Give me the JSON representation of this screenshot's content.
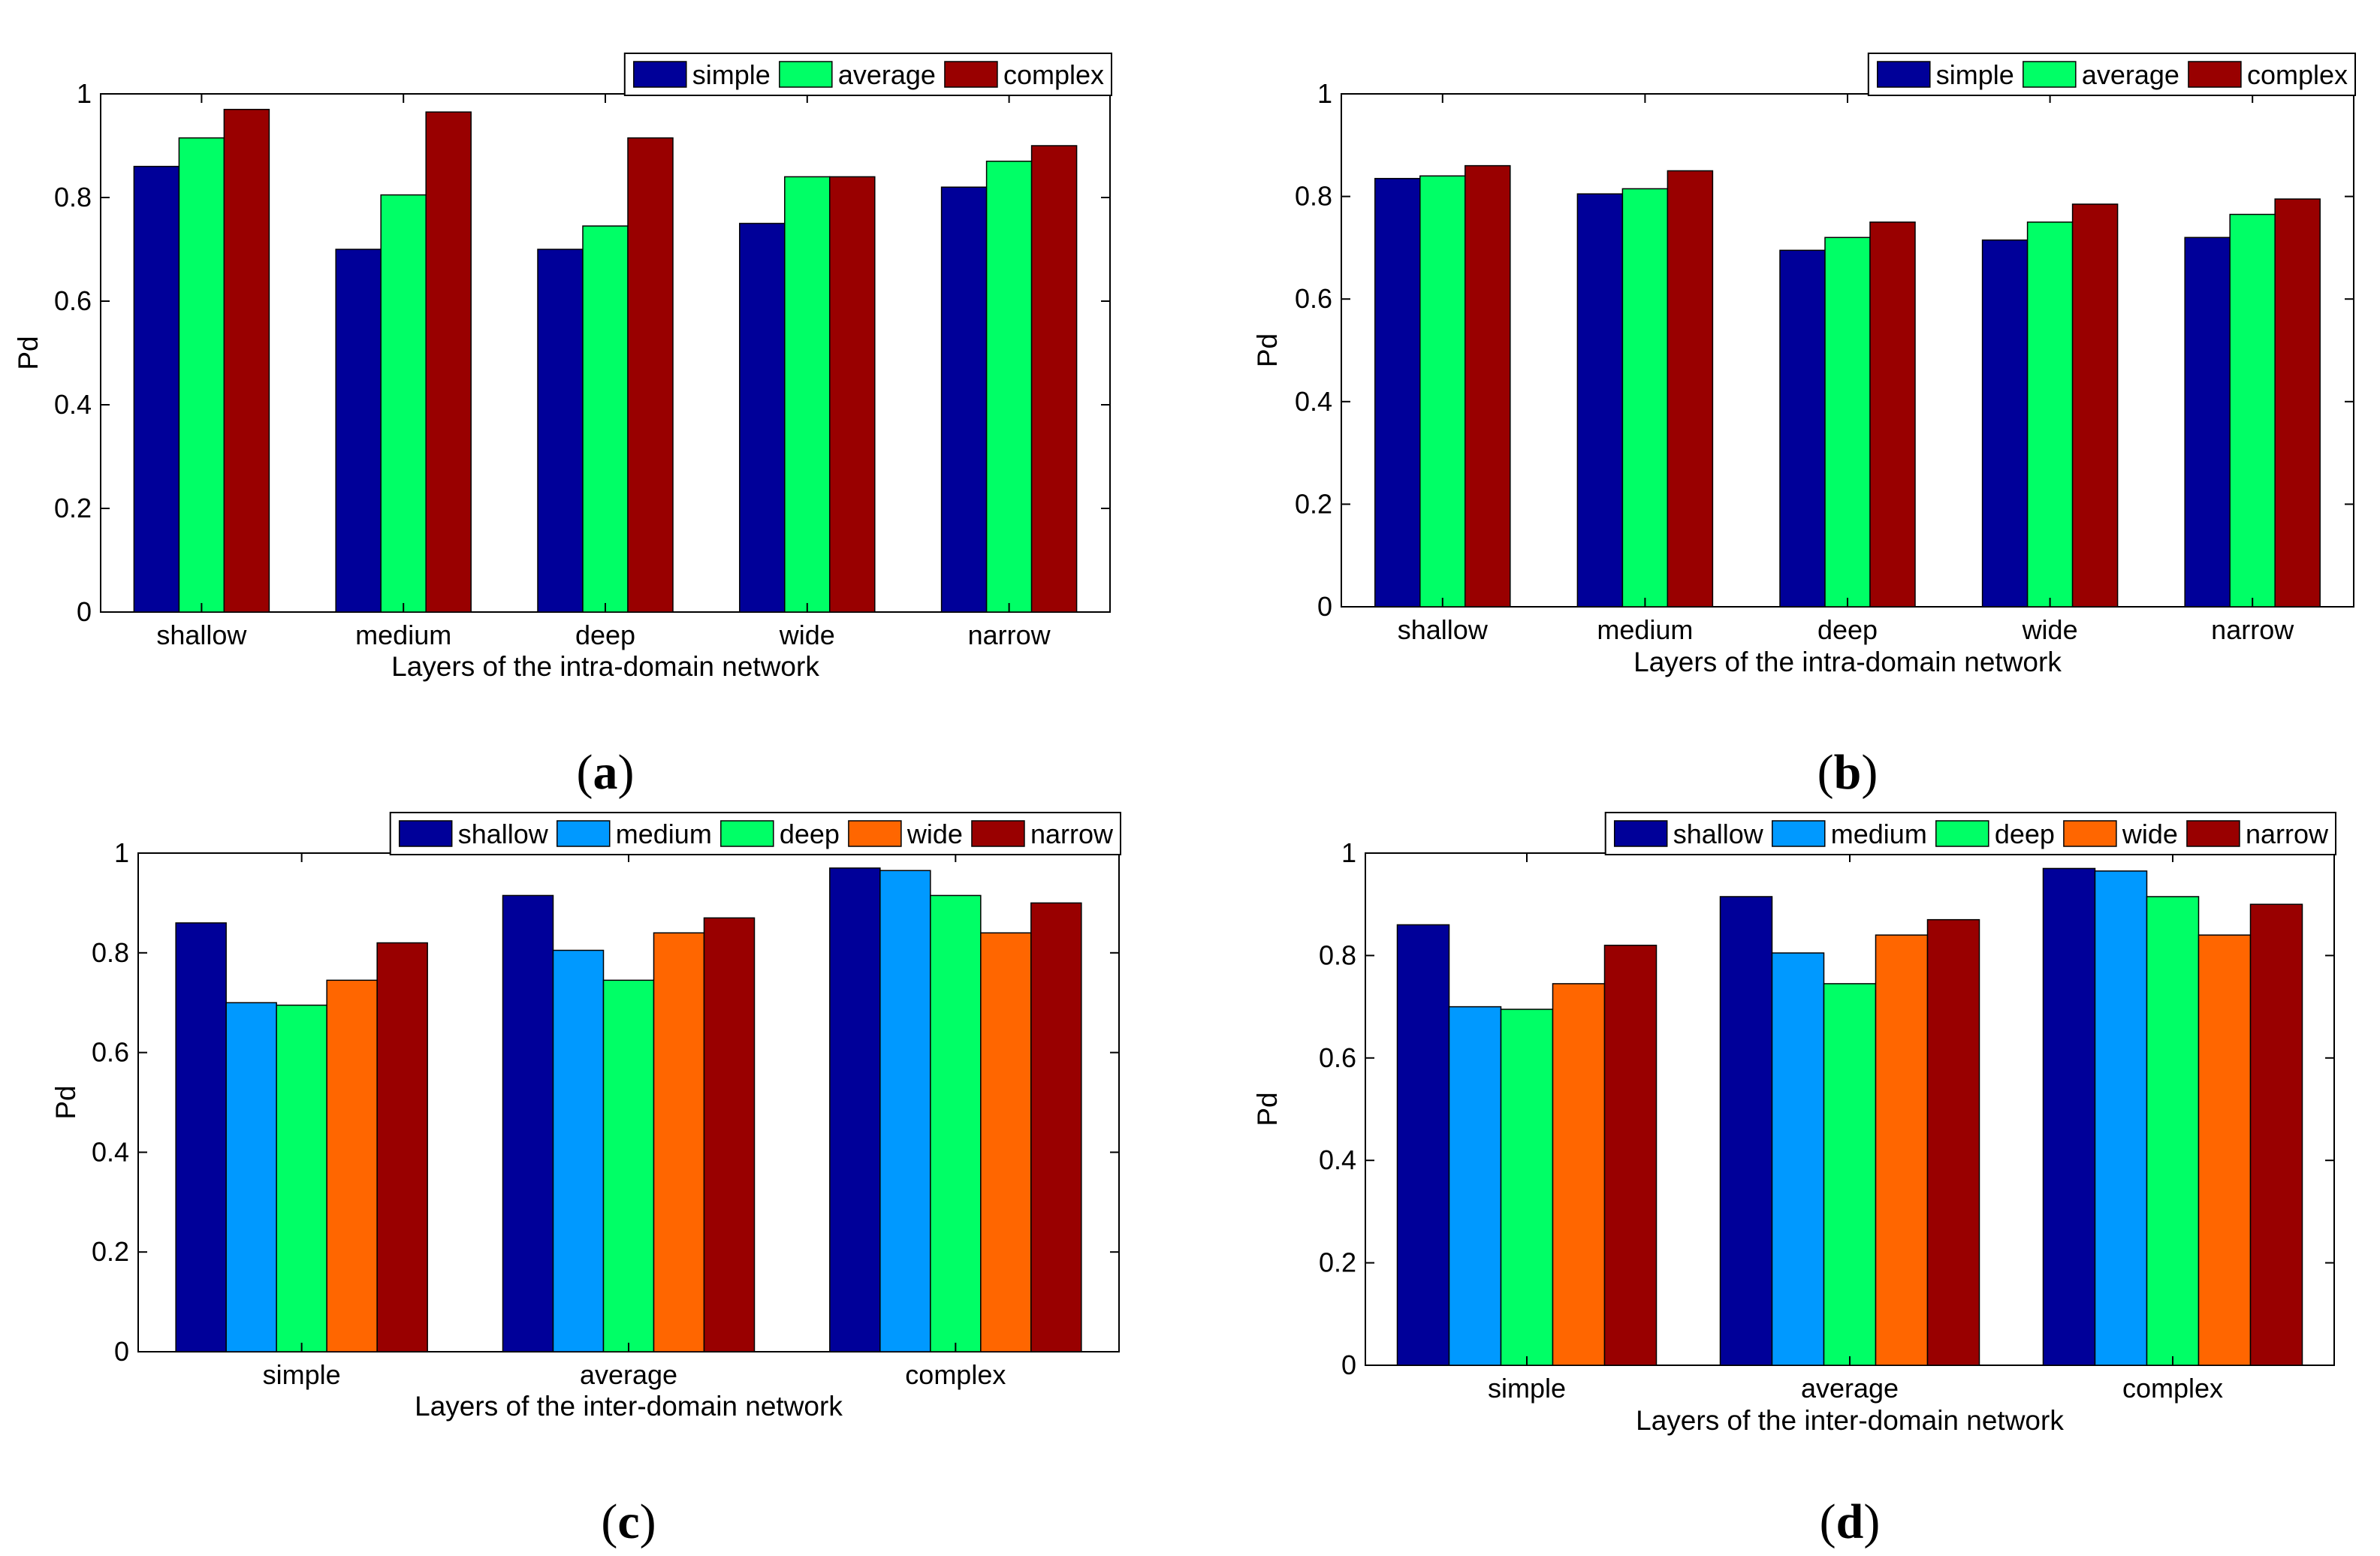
{
  "chart_data": [
    {
      "type": "bar",
      "panel_label": "a",
      "categories": [
        "shallow",
        "medium",
        "deep",
        "wide",
        "narrow"
      ],
      "series": [
        {
          "name": "simple",
          "color": "#000099",
          "values": [
            0.86,
            0.7,
            0.7,
            0.75,
            0.82
          ]
        },
        {
          "name": "average",
          "color": "#00ff66",
          "values": [
            0.915,
            0.805,
            0.745,
            0.84,
            0.87
          ]
        },
        {
          "name": "complex",
          "color": "#990000",
          "values": [
            0.97,
            0.965,
            0.915,
            0.84,
            0.9
          ]
        }
      ],
      "xlabel": "Layers of the intra-domain network",
      "ylabel": "Pd",
      "ylim": [
        0,
        1
      ],
      "yticks": [
        "0",
        "0.2",
        "0.4",
        "0.6",
        "0.8",
        "1"
      ],
      "legend": "top-right"
    },
    {
      "type": "bar",
      "panel_label": "b",
      "categories": [
        "shallow",
        "medium",
        "deep",
        "wide",
        "narrow"
      ],
      "series": [
        {
          "name": "simple",
          "color": "#000099",
          "values": [
            0.835,
            0.805,
            0.695,
            0.715,
            0.72
          ]
        },
        {
          "name": "average",
          "color": "#00ff66",
          "values": [
            0.84,
            0.815,
            0.72,
            0.75,
            0.765
          ]
        },
        {
          "name": "complex",
          "color": "#990000",
          "values": [
            0.86,
            0.85,
            0.75,
            0.785,
            0.795
          ]
        }
      ],
      "xlabel": "Layers of the intra-domain network",
      "ylabel": "Pd",
      "ylim": [
        0,
        1
      ],
      "yticks": [
        "0",
        "0.2",
        "0.4",
        "0.6",
        "0.8",
        "1"
      ],
      "legend": "top-right"
    },
    {
      "type": "bar",
      "panel_label": "c",
      "categories": [
        "simple",
        "average",
        "complex"
      ],
      "series": [
        {
          "name": "shallow",
          "color": "#000099",
          "values": [
            0.86,
            0.915,
            0.97
          ]
        },
        {
          "name": "medium",
          "color": "#0099ff",
          "values": [
            0.7,
            0.805,
            0.965
          ]
        },
        {
          "name": "deep",
          "color": "#00ff66",
          "values": [
            0.695,
            0.745,
            0.915
          ]
        },
        {
          "name": "wide",
          "color": "#ff6600",
          "values": [
            0.745,
            0.84,
            0.84
          ]
        },
        {
          "name": "narrow",
          "color": "#990000",
          "values": [
            0.82,
            0.87,
            0.9
          ]
        }
      ],
      "xlabel": "Layers of the inter-domain network",
      "ylabel": "Pd",
      "ylim": [
        0,
        1
      ],
      "yticks": [
        "0",
        "0.2",
        "0.4",
        "0.6",
        "0.8",
        "1"
      ],
      "legend": "top-right"
    },
    {
      "type": "bar",
      "panel_label": "d",
      "categories": [
        "simple",
        "average",
        "complex"
      ],
      "series": [
        {
          "name": "shallow",
          "color": "#000099",
          "values": [
            0.86,
            0.915,
            0.97
          ]
        },
        {
          "name": "medium",
          "color": "#0099ff",
          "values": [
            0.7,
            0.805,
            0.965
          ]
        },
        {
          "name": "deep",
          "color": "#00ff66",
          "values": [
            0.695,
            0.745,
            0.915
          ]
        },
        {
          "name": "wide",
          "color": "#ff6600",
          "values": [
            0.745,
            0.84,
            0.84
          ]
        },
        {
          "name": "narrow",
          "color": "#990000",
          "values": [
            0.82,
            0.87,
            0.9
          ]
        }
      ],
      "xlabel": "Layers of the inter-domain network",
      "ylabel": "Pd",
      "ylim": [
        0,
        1
      ],
      "yticks": [
        "0",
        "0.2",
        "0.4",
        "0.6",
        "0.8",
        "1"
      ],
      "legend": "top-right"
    }
  ]
}
